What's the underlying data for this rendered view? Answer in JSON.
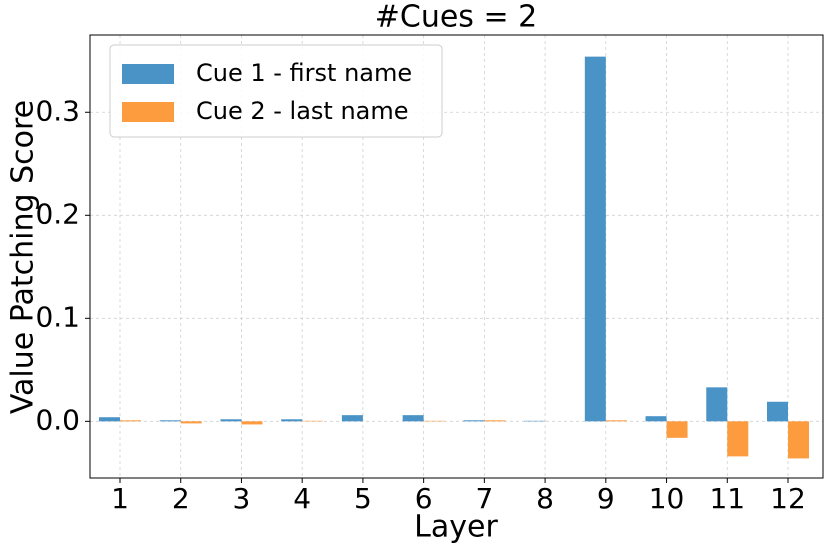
{
  "chart_data": {
    "type": "bar",
    "title": "#Cues = 2",
    "x_label": "Layer",
    "y_label": "Value Patching Score",
    "categories": [
      "1",
      "2",
      "3",
      "4",
      "5",
      "6",
      "7",
      "8",
      "9",
      "10",
      "11",
      "12"
    ],
    "series": [
      {
        "name": "Cue 1 - first name",
        "color": "#4a93c6",
        "values": [
          0.004,
          0.001,
          0.002,
          0.002,
          0.006,
          0.006,
          0.001,
          0.0005,
          0.354,
          0.005,
          0.033,
          0.019
        ]
      },
      {
        "name": "Cue 2 - last name",
        "color": "#fd9b3f",
        "values": [
          0.001,
          -0.002,
          -0.003,
          0.0005,
          0,
          0.0005,
          0.001,
          0,
          0.001,
          -0.016,
          -0.034,
          -0.036
        ]
      }
    ],
    "ylim": [
      -0.055,
      0.375
    ],
    "yticks": [
      {
        "value": 0,
        "label": "0.0"
      },
      0.1,
      0.2,
      0.3
    ],
    "grid": true,
    "legend": "upper left"
  }
}
